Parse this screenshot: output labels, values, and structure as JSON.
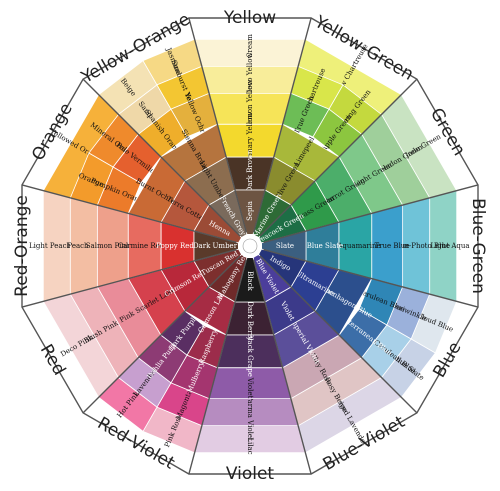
{
  "wheel": {
    "sectors": [
      {
        "name": "Yellow",
        "rings": [
          [
            {
              "label": "Cream",
              "color": "#fbf3d6"
            }
          ],
          [
            {
              "label": "Deco Yellow",
              "color": "#f8ed9a"
            }
          ],
          [
            {
              "label": "Lemon Yellow",
              "color": "#f6e458"
            }
          ],
          [
            {
              "label": "Canary Yellow",
              "color": "#f3d92d"
            }
          ],
          [
            {
              "label": "Dark Brown",
              "color": "#4a3426"
            }
          ],
          [
            {
              "label": "Sepia",
              "color": "#6d5442"
            }
          ]
        ]
      },
      {
        "name": "Yellow-Green",
        "rings": [
          [
            {
              "label": "Yellow Chartreuse",
              "color": "#eef07a"
            }
          ],
          [
            {
              "label": "Chartreuse",
              "color": "#d9e64a"
            },
            {
              "label": "Spring Green",
              "color": "#c4d93e"
            }
          ],
          [
            {
              "label": "True Green",
              "color": "#6dbd56"
            },
            {
              "label": "Apple Green",
              "color": "#8cc63f"
            }
          ],
          [
            {
              "label": "Limepeel",
              "color": "#a8b83a"
            }
          ],
          [
            {
              "label": "Olive Green",
              "color": "#8a8c2e"
            }
          ],
          [
            {
              "label": "Marine Green",
              "color": "#2e6b36"
            }
          ]
        ]
      },
      {
        "name": "Green",
        "rings": [
          [
            {
              "label": "Jade Green",
              "color": "#c9e3c2"
            }
          ],
          [
            {
              "label": "Celadon Green",
              "color": "#9fcf9b"
            }
          ],
          [
            {
              "label": "Light Green",
              "color": "#7fc88a"
            }
          ],
          [
            {
              "label": "Parrot Green",
              "color": "#4cae6a"
            }
          ],
          [
            {
              "label": "Grass Green",
              "color": "#2f9a4a"
            }
          ],
          [
            {
              "label": "Peacock Green",
              "color": "#1d6e45"
            }
          ]
        ]
      },
      {
        "name": "Blue-Green",
        "rings": [
          [
            {
              "label": "Light Aqua",
              "color": "#8fd3c6"
            }
          ],
          [
            {
              "label": "Non-Photo Blue",
              "color": "#6fc3d8"
            }
          ],
          [
            {
              "label": "True Blue",
              "color": "#3b9fcc"
            }
          ],
          [
            {
              "label": "Aquamarine",
              "color": "#2aa5a5"
            }
          ],
          [
            {
              "label": "Blue Slate",
              "color": "#2f7e9a"
            }
          ],
          [
            {
              "label": "Slate",
              "color": "#3b5f80"
            }
          ]
        ]
      },
      {
        "name": "Blue",
        "rings": [
          [
            {
              "label": "Cloud Blue",
              "color": "#dfe7ee"
            },
            {
              "label": "Blue Slate",
              "color": "#c7d2e6"
            }
          ],
          [
            {
              "label": "Periwinkle",
              "color": "#9bb1db"
            },
            {
              "label": "Light Cerulean Blue",
              "color": "#a8d0e8"
            }
          ],
          [
            {
              "label": "Cerulean Blue",
              "color": "#2f86b6"
            },
            {
              "label": "Mediterranean Blue",
              "color": "#3c6ea8"
            }
          ],
          [
            {
              "label": "Copenhagen Blue",
              "color": "#2c4f8d"
            }
          ],
          [
            {
              "label": "Ultramarine",
              "color": "#2c3f92"
            }
          ],
          [
            {
              "label": "Indigo",
              "color": "#26357a"
            }
          ]
        ]
      },
      {
        "name": "Blue-Violet",
        "rings": [
          [
            {
              "label": "Greyed Lavender",
              "color": "#dcd6e6"
            }
          ],
          [
            {
              "label": "Rosy Beige",
              "color": "#e0c5c5"
            }
          ],
          [
            {
              "label": "Clay Rose",
              "color": "#caa7b3"
            }
          ],
          [
            {
              "label": "Imperial Violet",
              "color": "#5b4f9a"
            }
          ],
          [
            {
              "label": "Violet",
              "color": "#3c3a8a"
            }
          ],
          [
            {
              "label": "Blue Violet",
              "color": "#4b3e9b"
            }
          ]
        ]
      },
      {
        "name": "Violet",
        "rings": [
          [
            {
              "label": "Lilac",
              "color": "#e2cce3"
            }
          ],
          [
            {
              "label": "Parma Violet",
              "color": "#b68cc0"
            }
          ],
          [
            {
              "label": "Violet",
              "color": "#8e5ba8"
            }
          ],
          [
            {
              "label": "Black Grape",
              "color": "#4c2f5c"
            }
          ],
          [
            {
              "label": "Dark Berry",
              "color": "#3c2233"
            }
          ],
          [
            {
              "label": "Black",
              "color": "#1b1b1b"
            }
          ]
        ]
      },
      {
        "name": "Red-Violet",
        "rings": [
          [
            {
              "label": "Pink Rose",
              "color": "#f1b7c8"
            },
            {
              "label": "Hot Pink",
              "color": "#f277a6"
            }
          ],
          [
            {
              "label": "Magenta",
              "color": "#d9458a"
            },
            {
              "label": "Lavender",
              "color": "#c79fcf"
            }
          ],
          [
            {
              "label": "Mulberry",
              "color": "#a4356f"
            },
            {
              "label": "Dahlia Purple",
              "color": "#8d3b74"
            }
          ],
          [
            {
              "label": "Raspberry",
              "color": "#9c2c4b"
            },
            {
              "label": "Dark Purple",
              "color": "#5a2e63"
            }
          ],
          [
            {
              "label": "Crimson Lake",
              "color": "#a62c44"
            }
          ],
          [
            {
              "label": "Mahogany Red",
              "color": "#6f2a2a"
            }
          ]
        ]
      },
      {
        "name": "Red",
        "rings": [
          [
            {
              "label": "Deco Pink",
              "color": "#f3d5d8"
            }
          ],
          [
            {
              "label": "Blush Pink",
              "color": "#eeb3b9"
            }
          ],
          [
            {
              "label": "Pink",
              "color": "#e98c99"
            }
          ],
          [
            {
              "label": "Scarlet Lake",
              "color": "#d5414d"
            }
          ],
          [
            {
              "label": "Crimson Red",
              "color": "#b8283a"
            }
          ],
          [
            {
              "label": "Tuscan Red",
              "color": "#7d2f2e"
            }
          ]
        ]
      },
      {
        "name": "Red-Orange",
        "rings": [
          [
            {
              "label": "Light Peach",
              "color": "#f6d3c1"
            }
          ],
          [
            {
              "label": "Peach",
              "color": "#f3bea3"
            }
          ],
          [
            {
              "label": "Salmon Pink",
              "color": "#eea08b"
            }
          ],
          [
            {
              "label": "Carmine Red",
              "color": "#e76b60"
            }
          ],
          [
            {
              "label": "Poppy Red",
              "color": "#d9312f"
            }
          ],
          [
            {
              "label": "Dark Umber",
              "color": "#5a3a2a"
            }
          ]
        ]
      },
      {
        "name": "Orange",
        "rings": [
          [
            {
              "label": "Yellowed Orange",
              "color": "#f6b13a"
            }
          ],
          [
            {
              "label": "Orange",
              "color": "#f39b2b"
            },
            {
              "label": "Mineral Orange",
              "color": "#ef8a2c"
            }
          ],
          [
            {
              "label": "Pumpkin Orange",
              "color": "#ec7b2a"
            },
            {
              "label": "Pale Vermilion",
              "color": "#e5602e"
            }
          ],
          [
            {
              "label": "Burnt Ochre",
              "color": "#c96a35"
            }
          ],
          [
            {
              "label": "Terra Cotta",
              "color": "#b5573c"
            }
          ],
          [
            {
              "label": "Henna",
              "color": "#9b4b36"
            }
          ]
        ]
      },
      {
        "name": "Yellow-Orange",
        "rings": [
          [
            {
              "label": "Beige",
              "color": "#f4e2b4"
            },
            {
              "label": "Jasmine",
              "color": "#f6d985"
            }
          ],
          [
            {
              "label": "Sand",
              "color": "#efd8a8"
            },
            {
              "label": "Sunburst Yellow",
              "color": "#f3c632"
            }
          ],
          [
            {
              "label": "Spanish Orange",
              "color": "#efae2b"
            },
            {
              "label": "Yellow Ochre",
              "color": "#e4b03d"
            }
          ],
          [
            {
              "label": "Sienna Brown",
              "color": "#b5743e"
            }
          ],
          [
            {
              "label": "Light Umber",
              "color": "#8c6d4f"
            }
          ],
          [
            {
              "label": "French Grey",
              "color": "#7a6a5c"
            }
          ]
        ]
      }
    ]
  }
}
